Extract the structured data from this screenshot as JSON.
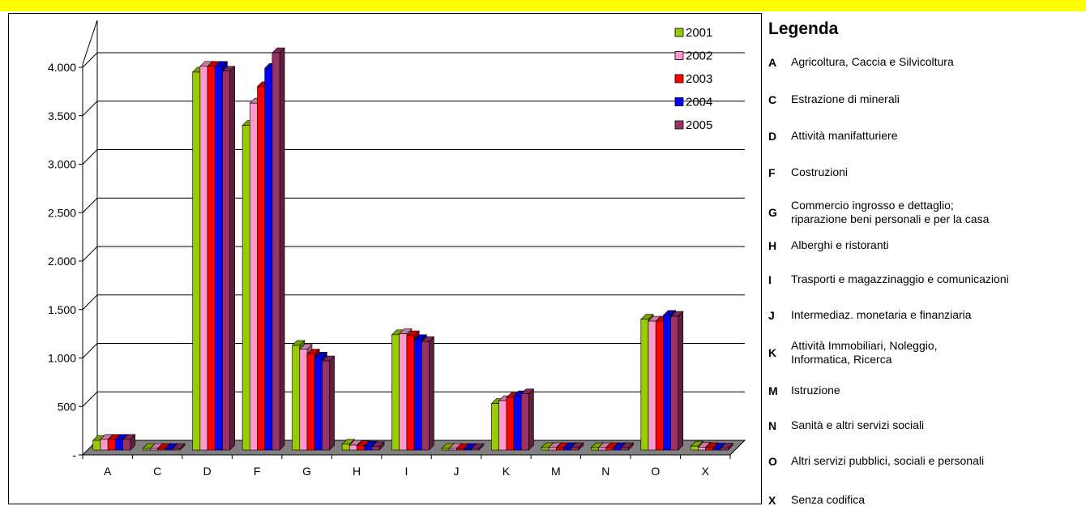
{
  "colors": {
    "band": "#ffff00",
    "series": [
      "#99cc00",
      "#ff99cc",
      "#ff0000",
      "#0000ff",
      "#993366"
    ],
    "floor": "#808080",
    "grid": "#000000"
  },
  "chart_data": {
    "type": "bar",
    "style": "3d-clustered-column",
    "categories": [
      "A",
      "C",
      "D",
      "F",
      "G",
      "H",
      "I",
      "J",
      "K",
      "M",
      "N",
      "O",
      "X"
    ],
    "series": [
      {
        "name": "2001",
        "values": [
          100,
          15,
          3900,
          3350,
          1080,
          60,
          1190,
          10,
          480,
          25,
          25,
          1350,
          40
        ]
      },
      {
        "name": "2002",
        "values": [
          110,
          15,
          3960,
          3580,
          1040,
          50,
          1200,
          10,
          510,
          25,
          25,
          1330,
          30
        ]
      },
      {
        "name": "2003",
        "values": [
          110,
          15,
          3960,
          3750,
          990,
          45,
          1180,
          10,
          540,
          25,
          25,
          1330,
          25
        ]
      },
      {
        "name": "2004",
        "values": [
          110,
          15,
          3960,
          3940,
          960,
          40,
          1140,
          10,
          560,
          25,
          25,
          1390,
          20
        ]
      },
      {
        "name": "2005",
        "values": [
          110,
          15,
          3910,
          4100,
          920,
          35,
          1120,
          10,
          580,
          25,
          25,
          1380,
          20
        ]
      }
    ],
    "yticks": [
      "-",
      "500",
      "1.000",
      "1.500",
      "2.000",
      "2.500",
      "3.000",
      "3.500",
      "4.000"
    ],
    "ylim": [
      0,
      4000
    ],
    "grid": true,
    "legend_position": "top-right"
  },
  "legend": {
    "title": "Legenda",
    "items": [
      {
        "code": "A",
        "label": "Agricoltura, Caccia e Silvicoltura"
      },
      {
        "code": "C",
        "label": "Estrazione di minerali"
      },
      {
        "code": "D",
        "label": "Attività manifatturiere"
      },
      {
        "code": "F",
        "label": "Costruzioni"
      },
      {
        "code": "G",
        "label": "Commercio ingrosso e dettaglio;\nriparazione beni personali e per la casa"
      },
      {
        "code": "H",
        "label": "Alberghi e ristoranti"
      },
      {
        "code": "I",
        "label": "Trasporti e magazzinaggio e comunicazioni"
      },
      {
        "code": "J",
        "label": "Intermediaz. monetaria e finanziaria"
      },
      {
        "code": "K",
        "label": "Attività Immobiliari, Noleggio,\nInformatica, Ricerca"
      },
      {
        "code": "M",
        "label": "Istruzione"
      },
      {
        "code": "N",
        "label": "Sanità e altri servizi sociali"
      },
      {
        "code": "O",
        "label": "Altri servizi pubblici, sociali e personali"
      },
      {
        "code": "X",
        "label": "Senza codifica"
      }
    ]
  }
}
